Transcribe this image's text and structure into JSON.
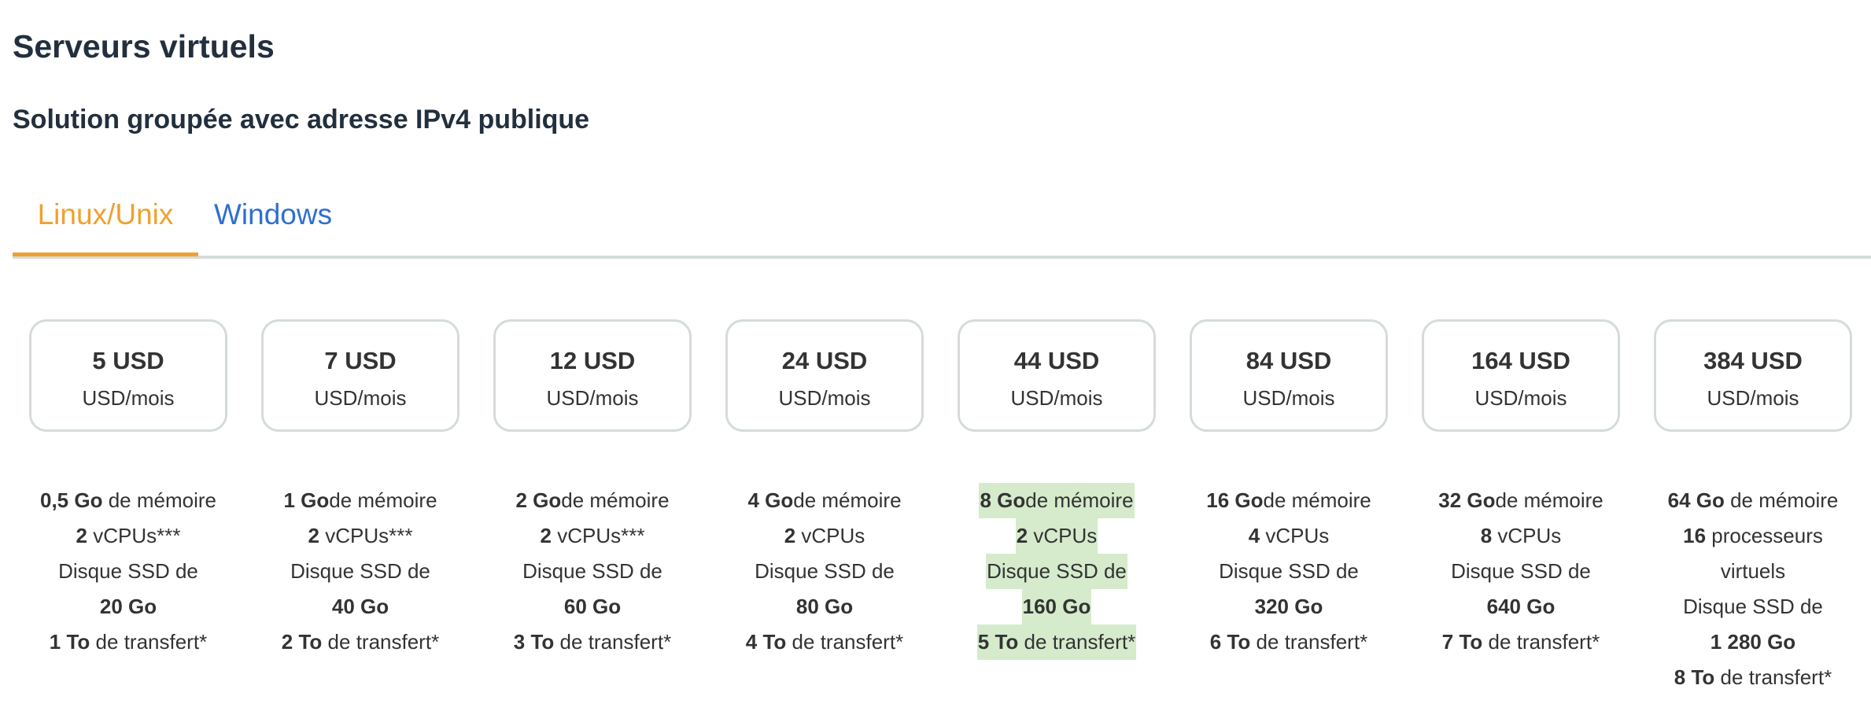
{
  "header": {
    "title": "Serveurs virtuels",
    "subtitle": "Solution groupée avec adresse IPv4 publique"
  },
  "tabs": [
    {
      "label": "Linux/Unix",
      "active": true
    },
    {
      "label": "Windows",
      "active": false
    }
  ],
  "colors": {
    "active_tab": "#f0a030",
    "link": "#2f6fd0",
    "highlight": "#d5ebcc",
    "card_border": "#d5dbdb"
  },
  "plans": [
    {
      "price": "5 USD",
      "period": "USD/mois",
      "highlight": false,
      "specs": [
        [
          {
            "t": "0,5 Go",
            "b": true
          },
          {
            "t": " de mémoire"
          }
        ],
        [
          {
            "t": "2",
            "b": true
          },
          {
            "t": " vCPUs***"
          }
        ],
        [
          {
            "t": "Disque SSD de"
          }
        ],
        [
          {
            "t": "20 Go",
            "b": true
          }
        ],
        [
          {
            "t": "1 To",
            "b": true
          },
          {
            "t": " de transfert*"
          }
        ]
      ]
    },
    {
      "price": "7 USD",
      "period": "USD/mois",
      "highlight": false,
      "specs": [
        [
          {
            "t": "1 Go",
            "b": true
          },
          {
            "t": "de mémoire"
          }
        ],
        [
          {
            "t": "2",
            "b": true
          },
          {
            "t": " vCPUs***"
          }
        ],
        [
          {
            "t": "Disque SSD de"
          }
        ],
        [
          {
            "t": "40 Go",
            "b": true
          }
        ],
        [
          {
            "t": "2 To",
            "b": true
          },
          {
            "t": " de transfert*"
          }
        ]
      ]
    },
    {
      "price": "12 USD",
      "period": "USD/mois",
      "highlight": false,
      "specs": [
        [
          {
            "t": "2 Go",
            "b": true
          },
          {
            "t": "de mémoire"
          }
        ],
        [
          {
            "t": "2",
            "b": true
          },
          {
            "t": " vCPUs***"
          }
        ],
        [
          {
            "t": "Disque SSD de"
          }
        ],
        [
          {
            "t": "60 Go",
            "b": true
          }
        ],
        [
          {
            "t": "3 To",
            "b": true
          },
          {
            "t": " de transfert*"
          }
        ]
      ]
    },
    {
      "price": "24 USD",
      "period": "USD/mois",
      "highlight": false,
      "specs": [
        [
          {
            "t": "4 Go",
            "b": true
          },
          {
            "t": "de mémoire"
          }
        ],
        [
          {
            "t": "2",
            "b": true
          },
          {
            "t": " vCPUs"
          }
        ],
        [
          {
            "t": "Disque SSD de"
          }
        ],
        [
          {
            "t": "80 Go",
            "b": true
          }
        ],
        [
          {
            "t": "4 To",
            "b": true
          },
          {
            "t": " de transfert*"
          }
        ]
      ]
    },
    {
      "price": "44 USD",
      "period": "USD/mois",
      "highlight": true,
      "specs": [
        [
          {
            "t": "8 Go",
            "b": true
          },
          {
            "t": "de mémoire"
          }
        ],
        [
          {
            "t": "2",
            "b": true
          },
          {
            "t": " vCPUs"
          }
        ],
        [
          {
            "t": "Disque SSD de"
          }
        ],
        [
          {
            "t": "160 Go",
            "b": true
          }
        ],
        [
          {
            "t": "5 To",
            "b": true
          },
          {
            "t": " de transfert*"
          }
        ]
      ]
    },
    {
      "price": "84 USD",
      "period": "USD/mois",
      "highlight": false,
      "specs": [
        [
          {
            "t": "16 Go",
            "b": true
          },
          {
            "t": "de mémoire"
          }
        ],
        [
          {
            "t": "4",
            "b": true
          },
          {
            "t": " vCPUs"
          }
        ],
        [
          {
            "t": "Disque SSD de"
          }
        ],
        [
          {
            "t": "320 Go",
            "b": true
          }
        ],
        [
          {
            "t": "6 To",
            "b": true
          },
          {
            "t": " de transfert*"
          }
        ]
      ]
    },
    {
      "price": "164 USD",
      "period": "USD/mois",
      "highlight": false,
      "specs": [
        [
          {
            "t": "32 Go",
            "b": true
          },
          {
            "t": "de mémoire"
          }
        ],
        [
          {
            "t": "8",
            "b": true
          },
          {
            "t": " vCPUs"
          }
        ],
        [
          {
            "t": "Disque SSD de"
          }
        ],
        [
          {
            "t": "640 Go",
            "b": true
          }
        ],
        [
          {
            "t": "7 To",
            "b": true
          },
          {
            "t": " de transfert*"
          }
        ]
      ]
    },
    {
      "price": "384 USD",
      "period": "USD/mois",
      "highlight": false,
      "specs": [
        [
          {
            "t": "64 Go",
            "b": true
          },
          {
            "t": " de mémoire"
          }
        ],
        [
          {
            "t": "16",
            "b": true
          },
          {
            "t": " processeurs"
          }
        ],
        [
          {
            "t": "virtuels"
          }
        ],
        [
          {
            "t": "Disque SSD de"
          }
        ],
        [
          {
            "t": "1 280 Go",
            "b": true
          }
        ],
        [
          {
            "t": "8 To",
            "b": true
          },
          {
            "t": " de transfert*"
          }
        ]
      ]
    }
  ]
}
